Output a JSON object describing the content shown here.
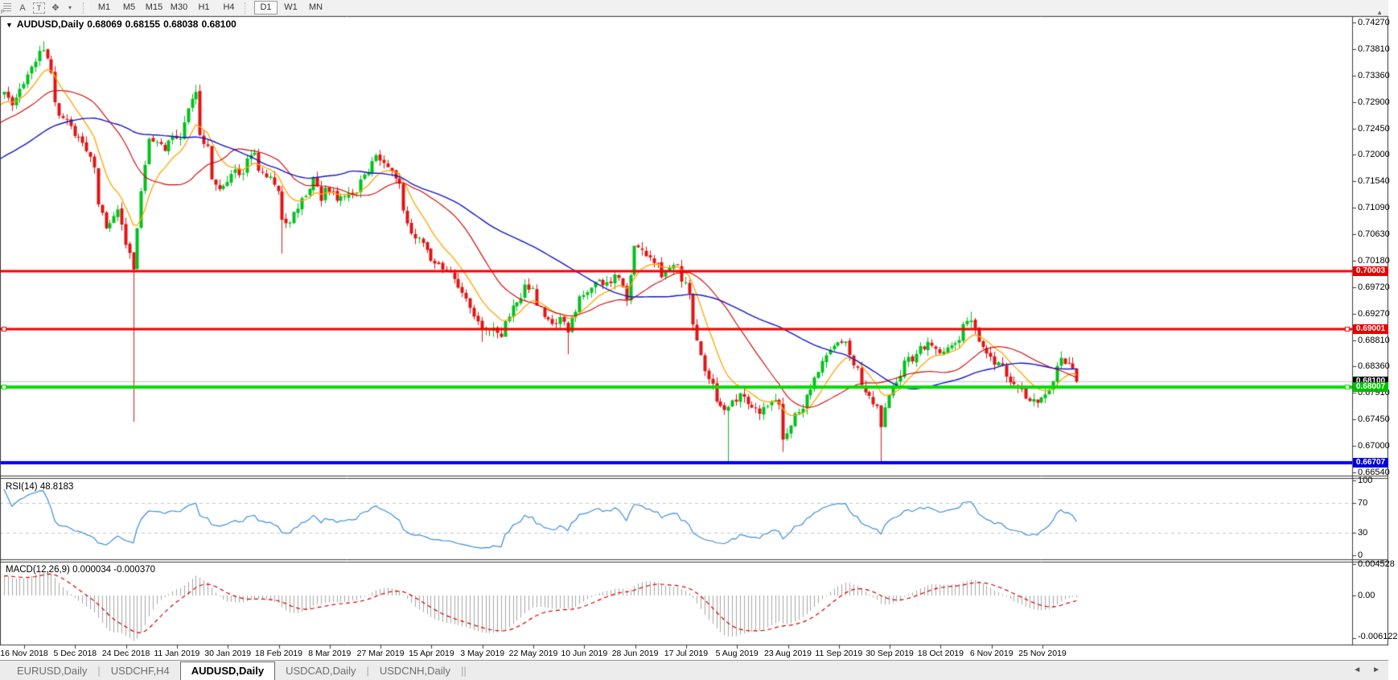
{
  "toolbar": {
    "icons": [
      {
        "name": "chart-profile-icon",
        "glyph": "F",
        "kind": "grid"
      },
      {
        "name": "text-annotation-icon",
        "glyph": "A",
        "kind": "text"
      },
      {
        "name": "text-label-tool-icon",
        "glyph": "T",
        "kind": "tbox"
      },
      {
        "name": "crosshair-cursor-icon",
        "glyph": "✥",
        "kind": "text"
      },
      {
        "name": "cursor-dropdown-caret-icon",
        "glyph": "▾",
        "kind": "caret"
      }
    ],
    "timeframes": [
      "M1",
      "M5",
      "M15",
      "M30",
      "H1",
      "H4",
      "D1",
      "W1",
      "MN"
    ],
    "active_timeframe": "D1",
    "corner_arrow": "▲"
  },
  "chart": {
    "title": {
      "dropdown": "▼",
      "symbol": "AUDUSD,Daily",
      "open": "0.68069",
      "high": "0.68155",
      "low": "0.68038",
      "close": "0.68100"
    },
    "price_axis_ticks": [
      "0.74270",
      "0.73810",
      "0.73360",
      "0.72900",
      "0.72450",
      "0.72000",
      "0.71540",
      "0.71090",
      "0.70630",
      "0.70180",
      "0.69720",
      "0.69270",
      "0.68810",
      "0.68360",
      "0.67910",
      "0.67450",
      "0.67000",
      "0.66540"
    ],
    "levels": [
      {
        "label": "0.70003",
        "price": 0.70003,
        "color": "#f40000",
        "thickness": 3,
        "handles": false
      },
      {
        "label": "0.69001",
        "price": 0.69001,
        "color": "#f40000",
        "thickness": 3,
        "handles": true
      },
      {
        "label": "0.68007",
        "price": 0.68007,
        "color": "#00e000",
        "thickness": 4,
        "handles": true
      },
      {
        "label": "0.66707",
        "price": 0.66707,
        "color": "#0000f0",
        "thickness": 4,
        "handles": false
      }
    ],
    "current_price": {
      "label": "0.68100",
      "price": 0.681,
      "chip_bg": "#000000",
      "line_color": "#c2c2c2"
    },
    "rsi": {
      "label": "RSI(14) 48.8183",
      "axis_ticks": [
        {
          "text": "100",
          "value": 100
        },
        {
          "text": "70",
          "value": 70
        },
        {
          "text": "30",
          "value": 30
        },
        {
          "text": "0",
          "value": 0
        }
      ],
      "dashed_levels": [
        70,
        30
      ],
      "line_color": "#3e8ede"
    },
    "macd": {
      "label": "MACD(12,26,9) 0.000034 -0.000370",
      "axis_ticks": [
        {
          "text": "0.004528",
          "value": 0.004528
        },
        {
          "text": "0.00",
          "value": 0
        },
        {
          "text": "-0.006122",
          "value": -0.006122
        }
      ],
      "histogram_color": "#a6a6a6",
      "signal_color": "#d40000"
    },
    "date_axis": [
      "16 Nov 2018",
      "5 Dec 2018",
      "24 Dec 2018",
      "11 Jan 2019",
      "30 Jan 2019",
      "18 Feb 2019",
      "8 Mar 2019",
      "27 Mar 2019",
      "15 Apr 2019",
      "3 May 2019",
      "22 May 2019",
      "10 Jun 2019",
      "28 Jun 2019",
      "17 Jul 2019",
      "5 Aug 2019",
      "23 Aug 2019",
      "11 Sep 2019",
      "30 Sep 2019",
      "18 Oct 2019",
      "6 Nov 2019",
      "25 Nov 2019"
    ],
    "chart_data": {
      "type": "candlestick",
      "symbol": "AUDUSD",
      "period": "Daily",
      "visible_bars": 275,
      "up_color": "#00c11c",
      "down_color": "#e01414",
      "ma_lines": [
        {
          "name": "fast-ema-10",
          "color": "#ffa500"
        },
        {
          "name": "mid-sma-25",
          "color": "#d40000"
        },
        {
          "name": "slow-sma-55",
          "color": "#1414c8"
        }
      ],
      "pre_history": {
        "bars": 60,
        "start": 0.706,
        "end": 0.731
      },
      "anchors": [
        [
          0,
          0.7314
        ],
        [
          2,
          0.7286
        ],
        [
          5,
          0.7321
        ],
        [
          8,
          0.7362
        ],
        [
          10,
          0.7383
        ],
        [
          12,
          0.7341
        ],
        [
          13,
          0.7286
        ],
        [
          15,
          0.7258
        ],
        [
          16,
          0.7265
        ],
        [
          18,
          0.7238
        ],
        [
          21,
          0.721
        ],
        [
          23,
          0.7175
        ],
        [
          24,
          0.712
        ],
        [
          26,
          0.7078
        ],
        [
          28,
          0.7092
        ],
        [
          29,
          0.7106
        ],
        [
          31,
          0.7051
        ],
        [
          33,
          0.7
        ],
        [
          35,
          0.7134
        ],
        [
          37,
          0.7224
        ],
        [
          39,
          0.7217
        ],
        [
          41,
          0.721
        ],
        [
          43,
          0.7238
        ],
        [
          45,
          0.7224
        ],
        [
          47,
          0.7286
        ],
        [
          49,
          0.7307
        ],
        [
          50,
          0.7231
        ],
        [
          52,
          0.721
        ],
        [
          53,
          0.7161
        ],
        [
          55,
          0.7141
        ],
        [
          57,
          0.7155
        ],
        [
          59,
          0.7175
        ],
        [
          61,
          0.7161
        ],
        [
          62,
          0.7189
        ],
        [
          64,
          0.7198
        ],
        [
          65,
          0.7175
        ],
        [
          67,
          0.7161
        ],
        [
          68,
          0.7168
        ],
        [
          70,
          0.7141
        ],
        [
          71,
          0.7092
        ],
        [
          73,
          0.7085
        ],
        [
          75,
          0.7106
        ],
        [
          76,
          0.7127
        ],
        [
          77,
          0.7134
        ],
        [
          79,
          0.7155
        ],
        [
          81,
          0.7127
        ],
        [
          82,
          0.7141
        ],
        [
          84,
          0.7134
        ],
        [
          85,
          0.712
        ],
        [
          87,
          0.7127
        ],
        [
          88,
          0.7134
        ],
        [
          90,
          0.7141
        ],
        [
          91,
          0.7155
        ],
        [
          93,
          0.7168
        ],
        [
          95,
          0.7202
        ],
        [
          96,
          0.7195
        ],
        [
          98,
          0.7175
        ],
        [
          99,
          0.7168
        ],
        [
          101,
          0.7155
        ],
        [
          102,
          0.7099
        ],
        [
          104,
          0.7065
        ],
        [
          105,
          0.7058
        ],
        [
          107,
          0.7051
        ],
        [
          108,
          0.7037
        ],
        [
          110,
          0.7009
        ],
        [
          112,
          0.7002
        ],
        [
          113,
          0.6995
        ],
        [
          115,
          0.6988
        ],
        [
          116,
          0.6974
        ],
        [
          118,
          0.6953
        ],
        [
          119,
          0.6933
        ],
        [
          121,
          0.6912
        ],
        [
          122,
          0.6901
        ],
        [
          124,
          0.6895
        ],
        [
          125,
          0.6905
        ],
        [
          127,
          0.6891
        ],
        [
          128,
          0.6912
        ],
        [
          130,
          0.694
        ],
        [
          132,
          0.6953
        ],
        [
          133,
          0.6981
        ],
        [
          135,
          0.6967
        ],
        [
          136,
          0.694
        ],
        [
          138,
          0.6926
        ],
        [
          139,
          0.6919
        ],
        [
          141,
          0.6912
        ],
        [
          142,
          0.6919
        ],
        [
          144,
          0.6898
        ],
        [
          145,
          0.6919
        ],
        [
          147,
          0.6953
        ],
        [
          149,
          0.6967
        ],
        [
          150,
          0.6974
        ],
        [
          152,
          0.6988
        ],
        [
          153,
          0.6974
        ],
        [
          155,
          0.6981
        ],
        [
          156,
          0.6995
        ],
        [
          158,
          0.6974
        ],
        [
          159,
          0.6953
        ],
        [
          161,
          0.7037
        ],
        [
          162,
          0.7044
        ],
        [
          164,
          0.7023
        ],
        [
          165,
          0.703
        ],
        [
          167,
          0.7009
        ],
        [
          168,
          0.6995
        ],
        [
          170,
          0.7002
        ],
        [
          172,
          0.7009
        ],
        [
          173,
          0.6988
        ],
        [
          175,
          0.6967
        ],
        [
          176,
          0.6912
        ],
        [
          178,
          0.6857
        ],
        [
          179,
          0.6829
        ],
        [
          181,
          0.6808
        ],
        [
          182,
          0.6773
        ],
        [
          184,
          0.6759
        ],
        [
          185,
          0.6766
        ],
        [
          187,
          0.678
        ],
        [
          188,
          0.6787
        ],
        [
          190,
          0.6773
        ],
        [
          192,
          0.6766
        ],
        [
          193,
          0.6759
        ],
        [
          195,
          0.6773
        ],
        [
          196,
          0.678
        ],
        [
          198,
          0.6766
        ],
        [
          199,
          0.671
        ],
        [
          201,
          0.6731
        ],
        [
          202,
          0.6752
        ],
        [
          204,
          0.6766
        ],
        [
          205,
          0.6787
        ],
        [
          207,
          0.6815
        ],
        [
          209,
          0.6843
        ],
        [
          210,
          0.6857
        ],
        [
          212,
          0.6878
        ],
        [
          213,
          0.6871
        ],
        [
          215,
          0.6878
        ],
        [
          216,
          0.685
        ],
        [
          218,
          0.6829
        ],
        [
          219,
          0.6808
        ],
        [
          221,
          0.6787
        ],
        [
          223,
          0.6766
        ],
        [
          224,
          0.6738
        ],
        [
          225,
          0.6766
        ],
        [
          227,
          0.6801
        ],
        [
          229,
          0.6822
        ],
        [
          230,
          0.6843
        ],
        [
          232,
          0.685
        ],
        [
          233,
          0.6864
        ],
        [
          235,
          0.6871
        ],
        [
          236,
          0.6878
        ],
        [
          238,
          0.6871
        ],
        [
          239,
          0.6864
        ],
        [
          241,
          0.6871
        ],
        [
          242,
          0.6878
        ],
        [
          244,
          0.6885
        ],
        [
          245,
          0.6905
        ],
        [
          247,
          0.6919
        ],
        [
          249,
          0.6885
        ],
        [
          250,
          0.6864
        ],
        [
          252,
          0.685
        ],
        [
          253,
          0.6843
        ],
        [
          255,
          0.6836
        ],
        [
          256,
          0.6822
        ],
        [
          258,
          0.6808
        ],
        [
          259,
          0.6801
        ],
        [
          261,
          0.6787
        ],
        [
          262,
          0.678
        ],
        [
          264,
          0.6773
        ],
        [
          265,
          0.6787
        ],
        [
          267,
          0.6794
        ],
        [
          269,
          0.6836
        ],
        [
          270,
          0.685
        ],
        [
          271,
          0.6843
        ],
        [
          273,
          0.6836
        ],
        [
          274,
          0.681
        ]
      ],
      "special_wicks": [
        {
          "i": 10,
          "high": 0.7395
        },
        {
          "i": 33,
          "low": 0.6741
        },
        {
          "i": 49,
          "high": 0.732
        },
        {
          "i": 71,
          "low": 0.703
        },
        {
          "i": 122,
          "low": 0.6878
        },
        {
          "i": 144,
          "low": 0.6857
        },
        {
          "i": 185,
          "low": 0.6672
        },
        {
          "i": 199,
          "low": 0.6689
        },
        {
          "i": 224,
          "low": 0.667
        },
        {
          "i": 247,
          "high": 0.693
        },
        {
          "i": 270,
          "high": 0.6862
        }
      ]
    }
  },
  "tabs": {
    "items": [
      {
        "label": "EURUSD,Daily",
        "active": false
      },
      {
        "label": "USDCHF,H4",
        "active": false
      },
      {
        "label": "AUDUSD,Daily",
        "active": true
      },
      {
        "label": "USDCAD,Daily",
        "active": false
      },
      {
        "label": "USDCNH,Daily",
        "active": false
      }
    ],
    "scroll_left": "◄",
    "scroll_right": "►"
  }
}
